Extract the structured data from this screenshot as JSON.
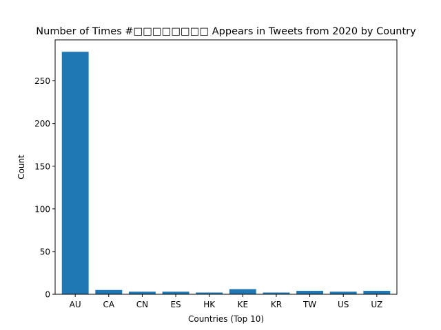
{
  "chart_data": {
    "type": "bar",
    "title": "Number of Times #□□□□□□□□ Appears in Tweets from 2020 by Country",
    "xlabel": "Countries (Top 10)",
    "ylabel": "Count",
    "categories": [
      "AU",
      "CA",
      "CN",
      "ES",
      "HK",
      "KE",
      "KR",
      "TW",
      "US",
      "UZ"
    ],
    "values": [
      284,
      5,
      3,
      3,
      2,
      6,
      2,
      4,
      3,
      4
    ],
    "ylim": [
      0,
      298
    ],
    "yticks": [
      0,
      50,
      100,
      150,
      200,
      250
    ],
    "grid": false,
    "legend": "none",
    "bar_color": "#1f77b4"
  }
}
